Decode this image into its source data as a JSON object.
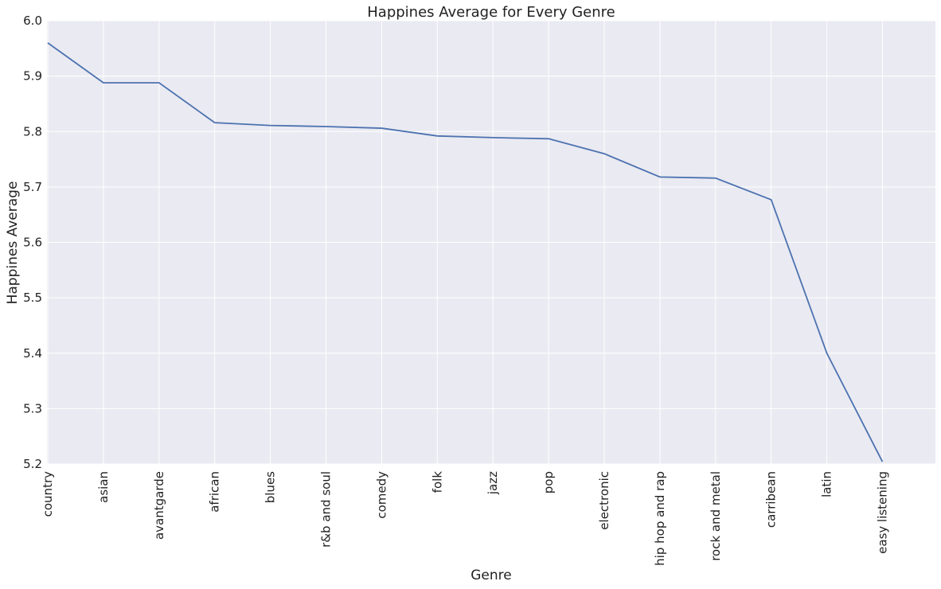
{
  "chart_data": {
    "type": "line",
    "title": "Happines Average for Every Genre",
    "xlabel": "Genre",
    "ylabel": "Happines Average",
    "categories": [
      "country",
      "asian",
      "avantgarde",
      "african",
      "blues",
      "r&b and soul",
      "comedy",
      "folk",
      "jazz",
      "pop",
      "electronic",
      "hip hop and rap",
      "rock and metal",
      "carribean",
      "latin",
      "easy listening"
    ],
    "values": [
      5.96,
      5.888,
      5.888,
      5.816,
      5.811,
      5.809,
      5.806,
      5.792,
      5.789,
      5.787,
      5.76,
      5.718,
      5.716,
      5.677,
      5.4,
      5.204
    ],
    "ylim": [
      5.2,
      6.0
    ],
    "yticks": [
      "5.2",
      "5.3",
      "5.4",
      "5.5",
      "5.6",
      "5.7",
      "5.8",
      "5.9",
      "6.0"
    ],
    "grid": true,
    "background": "#eaeaf2",
    "line_color": "#4c72b0"
  }
}
